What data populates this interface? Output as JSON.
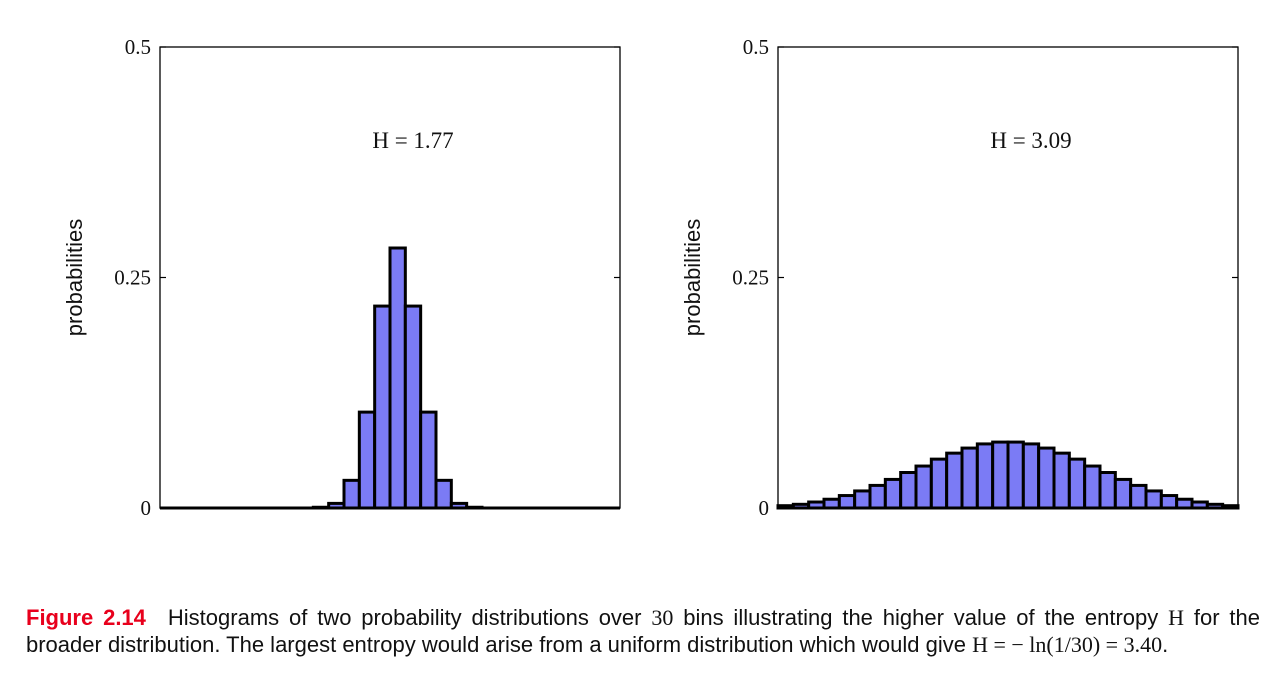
{
  "chart_data": [
    {
      "type": "bar",
      "ylabel": "probabilities",
      "ylim": [
        0,
        0.5
      ],
      "yticks": [
        "0",
        "0.25",
        "0.5"
      ],
      "annotation": "H = 1.77",
      "bins": 30,
      "values": [
        0,
        0,
        0,
        0,
        0,
        0,
        0,
        0,
        0,
        0,
        0.0008,
        0.005,
        0.03,
        0.104,
        0.219,
        0.282,
        0.219,
        0.104,
        0.03,
        0.005,
        0.0008,
        0,
        0,
        0,
        0,
        0,
        0,
        0,
        0,
        0
      ],
      "bar_color": "#7b7bf5",
      "edge_color": "#000000"
    },
    {
      "type": "bar",
      "ylabel": "probabilities",
      "ylim": [
        0,
        0.5
      ],
      "yticks": [
        "0",
        "0.25",
        "0.5"
      ],
      "annotation": "H = 3.09",
      "bins": 30,
      "values": [
        0.0025,
        0.004,
        0.0065,
        0.0095,
        0.0135,
        0.0185,
        0.0245,
        0.031,
        0.0385,
        0.0455,
        0.053,
        0.0595,
        0.065,
        0.0695,
        0.0715,
        0.0715,
        0.0695,
        0.065,
        0.0595,
        0.053,
        0.0455,
        0.0385,
        0.031,
        0.0245,
        0.0185,
        0.0135,
        0.0095,
        0.0065,
        0.004,
        0.0025
      ],
      "bar_color": "#7b7bf5",
      "edge_color": "#000000"
    }
  ],
  "caption": {
    "figure_label": "Figure 2.14",
    "text_1": "Histograms of two probability distributions over ",
    "bins_number": "30",
    "text_2": " bins illustrating the higher value of the entropy ",
    "H_symbol": "H",
    "text_3": " for the broader distribution.  The largest entropy would arise from a uniform distribution which would give ",
    "formula": "H = − ln(1/30) = 3.40",
    "text_end": "."
  }
}
